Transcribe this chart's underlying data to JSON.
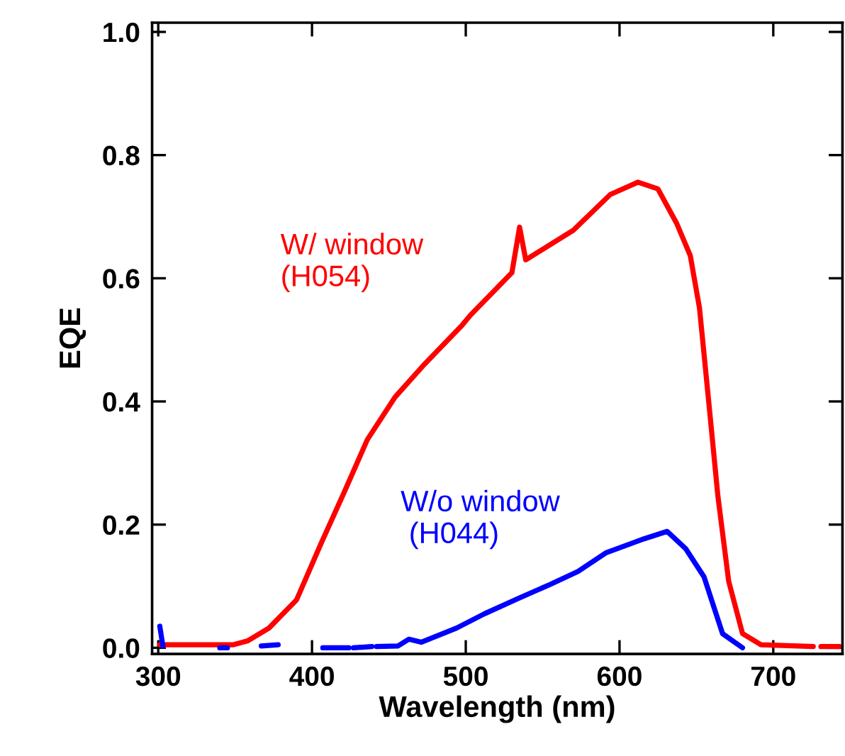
{
  "chart_data": {
    "type": "line",
    "xlabel": "Wavelength (nm)",
    "ylabel": "EQE",
    "xlim": [
      296,
      745
    ],
    "ylim": [
      -0.01,
      1.015
    ],
    "xticks": [
      300,
      400,
      500,
      600,
      700
    ],
    "yticks": [
      {
        "value": 0,
        "label": "0.0"
      },
      {
        "value": 0.2,
        "label": "0.2"
      },
      {
        "value": 0.4,
        "label": "0.4"
      },
      {
        "value": 0.6,
        "label": "0.6"
      },
      {
        "value": 0.8,
        "label": "0.8"
      },
      {
        "value": 1.0,
        "label": "1.0"
      }
    ],
    "grid": false,
    "legend": false,
    "marker": "none",
    "line_style": "solid",
    "series": [
      {
        "name": "W/ window\n(H054)",
        "color": "#ff0000",
        "x": [
          301,
          349,
          358,
          372,
          390,
          406,
          421,
          436,
          454,
          473,
          497,
          503,
          530,
          535,
          539,
          570,
          594,
          612,
          625,
          637,
          646,
          652,
          658,
          664,
          671,
          680,
          692,
          726,
          728,
          731,
          743
        ],
        "values": [
          0.005,
          0.005,
          0.011,
          0.032,
          0.078,
          0.17,
          0.253,
          0.338,
          0.407,
          0.46,
          0.522,
          0.54,
          0.609,
          0.683,
          0.63,
          0.678,
          0.736,
          0.756,
          0.745,
          0.69,
          0.637,
          0.552,
          0.4,
          0.246,
          0.108,
          0.023,
          0.005,
          0.002,
          null,
          0.002,
          0.002
        ]
      },
      {
        "name": "W/o window\n (H044)",
        "color": "#0000ff",
        "x": [
          301,
          303,
          304,
          340,
          345,
          350,
          367,
          378,
          390,
          407,
          424,
          425,
          427,
          439,
          440,
          442,
          456,
          463,
          471,
          494,
          512,
          534,
          555,
          573,
          591,
          616,
          631,
          643,
          655,
          667,
          680
        ],
        "values": [
          0.035,
          0.003,
          null,
          0.0,
          0.0,
          null,
          0.003,
          0.005,
          null,
          0.0,
          0.0,
          null,
          0.0,
          0.002,
          null,
          0.002,
          0.003,
          0.014,
          0.009,
          0.032,
          0.055,
          0.08,
          0.103,
          0.124,
          0.154,
          0.177,
          0.189,
          0.161,
          0.115,
          0.023,
          0.0
        ]
      }
    ]
  }
}
